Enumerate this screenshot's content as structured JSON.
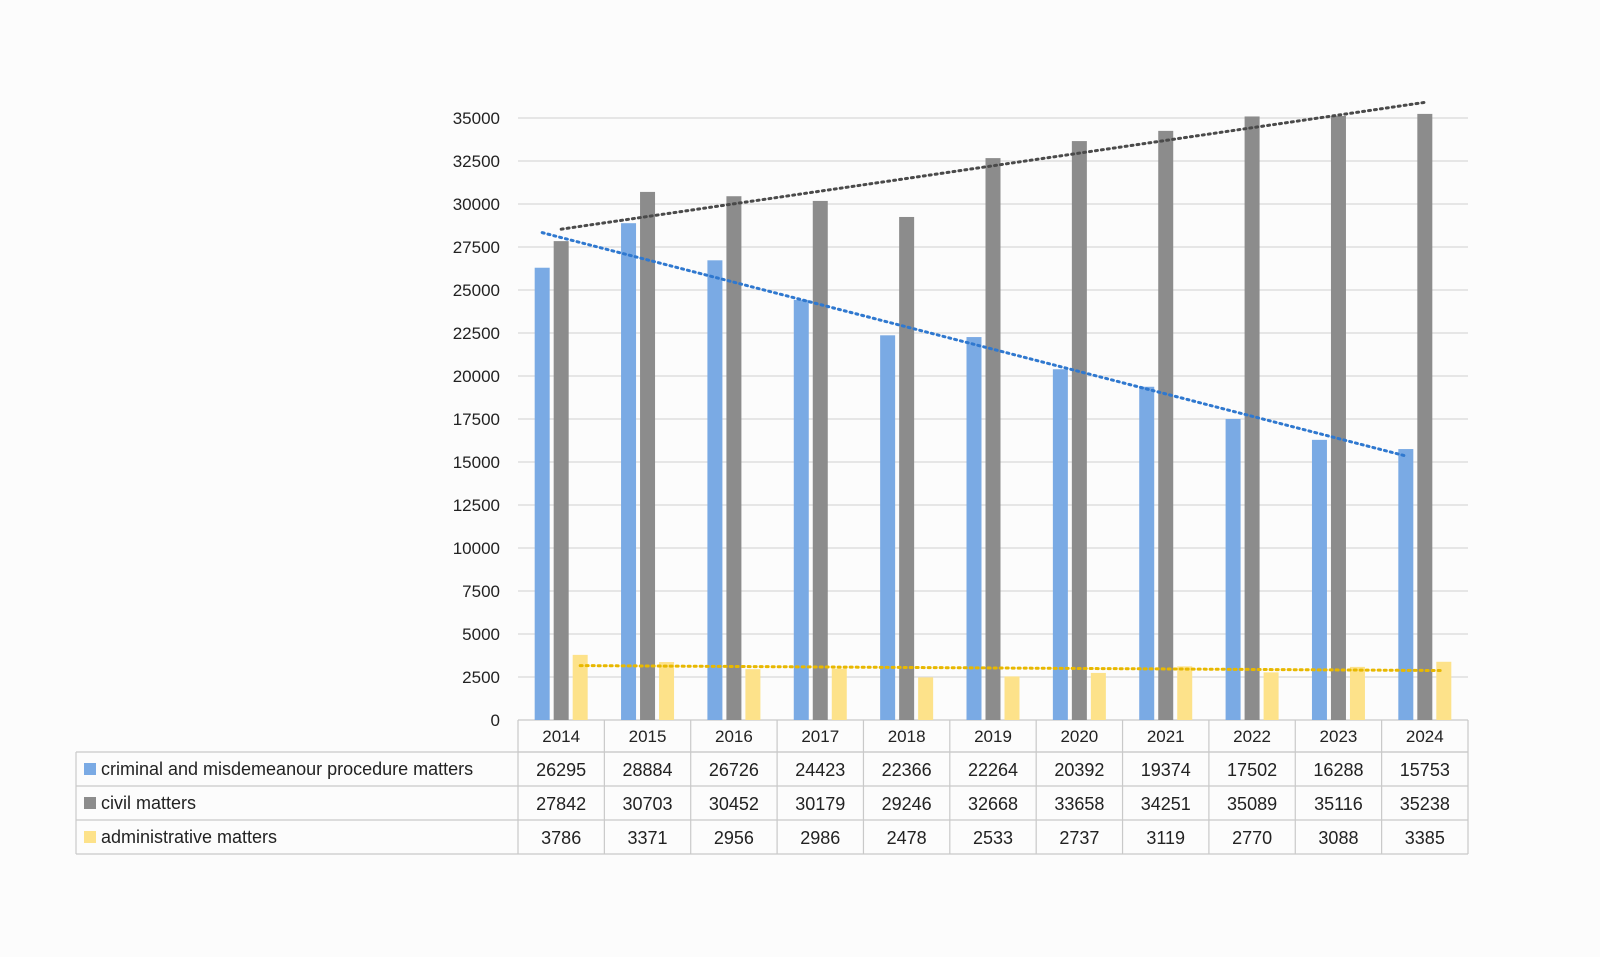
{
  "chart_data": {
    "type": "bar",
    "title": "",
    "xlabel": "",
    "ylabel": "",
    "categories": [
      "2014",
      "2015",
      "2016",
      "2017",
      "2018",
      "2019",
      "2020",
      "2021",
      "2022",
      "2023",
      "2024"
    ],
    "ylim": [
      0,
      35000
    ],
    "yticks": [
      "0",
      "2500",
      "5000",
      "7500",
      "10000",
      "12500",
      "15000",
      "17500",
      "20000",
      "22500",
      "25000",
      "27500",
      "30000",
      "32500",
      "35000"
    ],
    "grid": true,
    "legend": "data-table",
    "series": [
      {
        "name": "criminal and misdemeanour procedure matters",
        "color": "#7aaae4",
        "trend_color": "#2f78cf",
        "values": [
          26295,
          28884,
          26726,
          24423,
          22366,
          22264,
          20392,
          19374,
          17502,
          16288,
          15753
        ],
        "labels": [
          "26295",
          "28884",
          "26726",
          "24423",
          "22366",
          "22264",
          "20392",
          "19374",
          "17502",
          "16288",
          "15753"
        ]
      },
      {
        "name": "civil matters",
        "color": "#8c8c8c",
        "trend_color": "#4a4a4a",
        "values": [
          27842,
          30703,
          30452,
          30179,
          29246,
          32668,
          33658,
          34251,
          35089,
          35116,
          35238
        ],
        "labels": [
          "27842",
          "30703",
          "30452",
          "30179",
          "29246",
          "32668",
          "33658",
          "34251",
          "35089",
          "35116",
          "35238"
        ]
      },
      {
        "name": "administrative matters",
        "color": "#fde28a",
        "trend_color": "#e8b800",
        "values": [
          3786,
          3371,
          2956,
          2986,
          2478,
          2533,
          2737,
          3119,
          2770,
          3088,
          3385
        ],
        "labels": [
          "3786",
          "3371",
          "2956",
          "2986",
          "2478",
          "2533",
          "2737",
          "3119",
          "2770",
          "3088",
          "3385"
        ]
      }
    ],
    "trendlines": "linear, dotted, one per series"
  }
}
